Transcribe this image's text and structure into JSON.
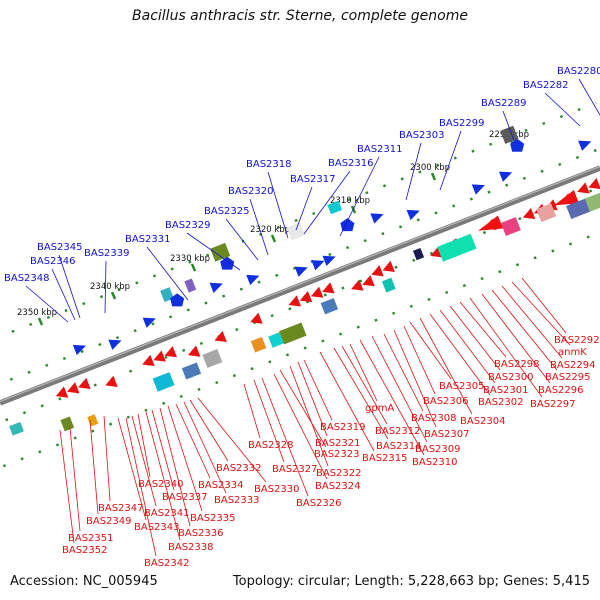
{
  "title": "Bacillus anthracis str. Sterne, complete genome",
  "footer": {
    "accession": "Accession: NC_005945",
    "summary": "Topology: circular; Length: 5,228,663 bp; Genes: 5,415"
  },
  "colors": {
    "backbone": "#7a7a7a",
    "forward_label": "#1010d0",
    "reverse_label": "#dd1111",
    "tick": "#2a8a2a"
  },
  "scale_ticks": [
    {
      "label": "2350 kbp"
    },
    {
      "label": "2340 kbp"
    },
    {
      "label": "2330 kbp"
    },
    {
      "label": "2320 kbp"
    },
    {
      "label": "2310 kbp"
    },
    {
      "label": "2300 kbp"
    },
    {
      "label": "2290 kbp"
    }
  ],
  "forward_genes": [
    "BAS2348",
    "BAS2346",
    "BAS2345",
    "BAS2339",
    "BAS2331",
    "BAS2329",
    "BAS2325",
    "BAS2320",
    "BAS2318",
    "BAS2317",
    "BAS2316",
    "BAS2311",
    "BAS2303",
    "BAS2299",
    "BAS2289",
    "BAS2282",
    "BAS2280"
  ],
  "reverse_genes": [
    "BAS2352",
    "BAS2351",
    "BAS2349",
    "BAS2347",
    "BAS2343",
    "BAS2342",
    "BAS2341",
    "BAS2340",
    "BAS2338",
    "BAS2337",
    "BAS2336",
    "BAS2335",
    "BAS2334",
    "BAS2333",
    "BAS2332",
    "BAS2330",
    "BAS2328",
    "BAS2327",
    "BAS2326",
    "BAS2324",
    "BAS2323",
    "BAS2322",
    "BAS2321",
    "BAS2319",
    "BAS2315",
    "BAS2314",
    "BAS2312",
    "gpmA",
    "BAS2310",
    "BAS2309",
    "BAS2308",
    "BAS2307",
    "BAS2306",
    "BAS2305",
    "BAS2304",
    "BAS2302",
    "BAS2301",
    "BAS2300",
    "BAS2298",
    "BAS2297",
    "BAS2296",
    "BAS2295",
    "BAS2294",
    "anmK",
    "BAS2292"
  ]
}
